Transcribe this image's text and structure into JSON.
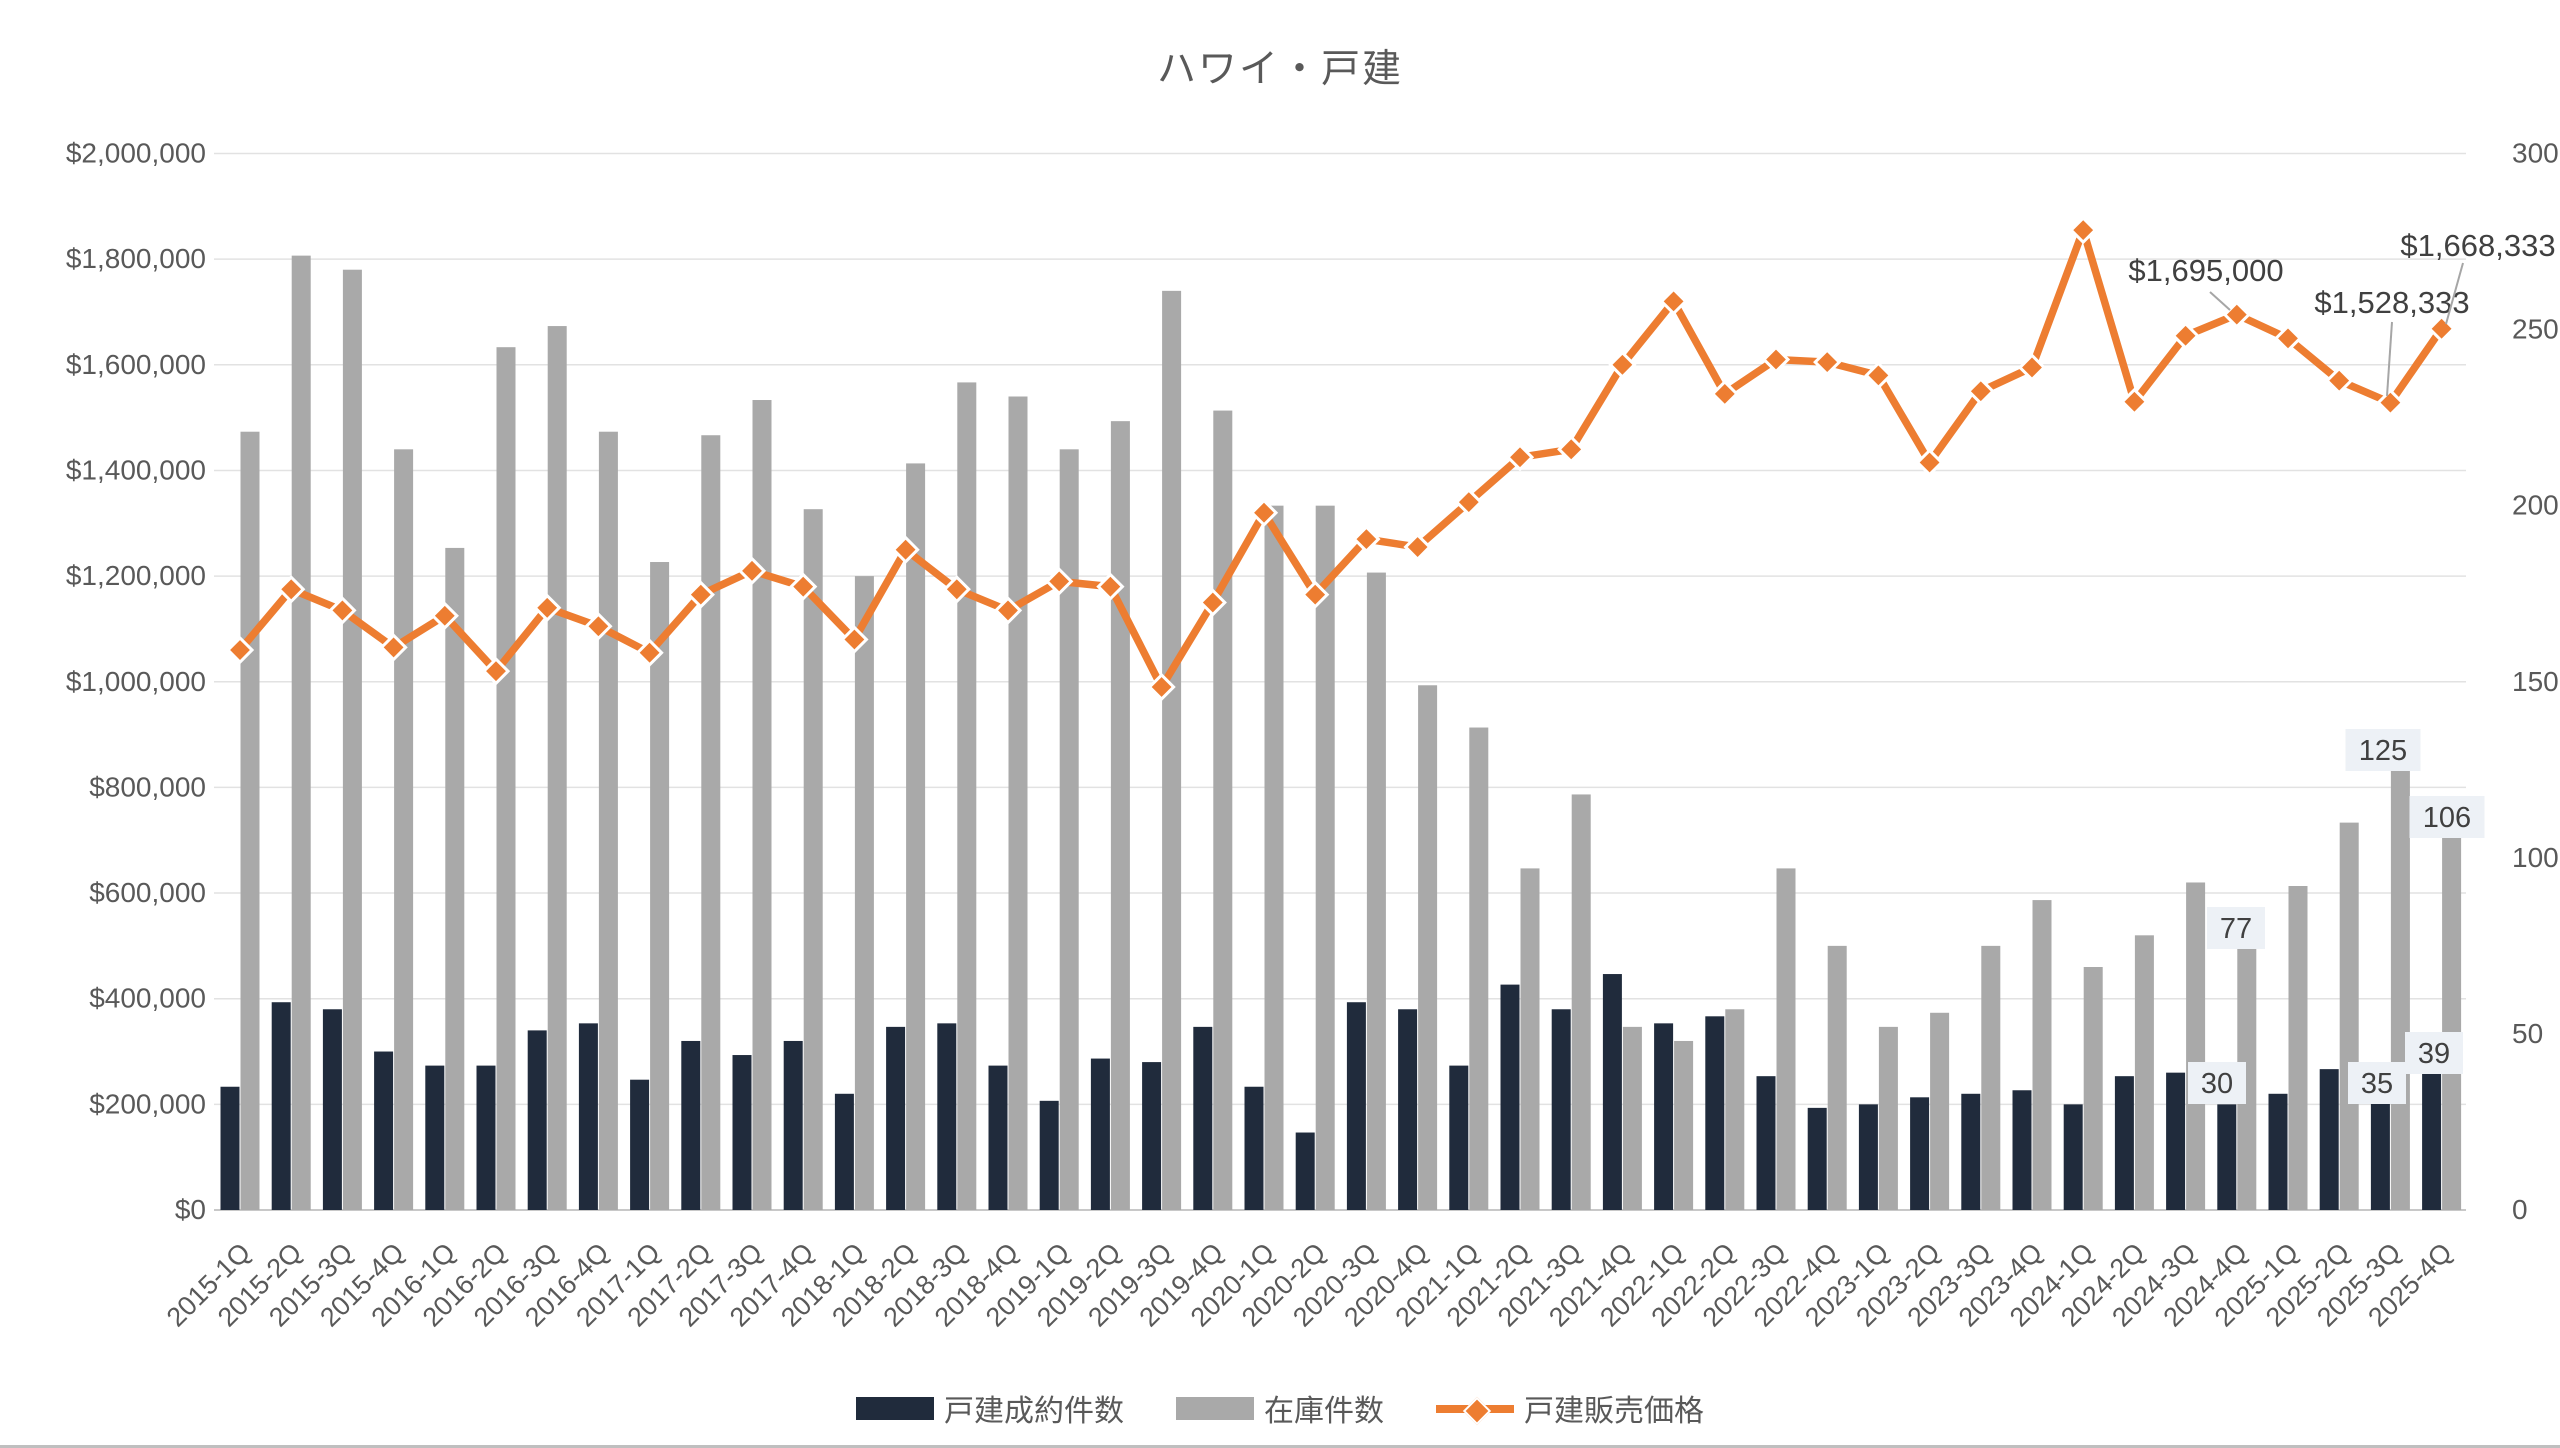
{
  "title": "ハワイ・戸建",
  "chart_data": {
    "type": "combo",
    "title": "ハワイ・戸建",
    "categories": [
      "2015-1Q",
      "2015-2Q",
      "2015-3Q",
      "2015-4Q",
      "2016-1Q",
      "2016-2Q",
      "2016-3Q",
      "2016-4Q",
      "2017-1Q",
      "2017-2Q",
      "2017-3Q",
      "2017-4Q",
      "2018-1Q",
      "2018-2Q",
      "2018-3Q",
      "2018-4Q",
      "2019-1Q",
      "2019-2Q",
      "2019-3Q",
      "2019-4Q",
      "2020-1Q",
      "2020-2Q",
      "2020-3Q",
      "2020-4Q",
      "2021-1Q",
      "2021-2Q",
      "2021-3Q",
      "2021-4Q",
      "2022-1Q",
      "2022-2Q",
      "2022-3Q",
      "2022-4Q",
      "2023-1Q",
      "2023-2Q",
      "2023-3Q",
      "2023-4Q",
      "2024-1Q",
      "2024-2Q",
      "2024-3Q",
      "2024-4Q",
      "2025-1Q",
      "2025-2Q",
      "2025-3Q",
      "2025-4Q"
    ],
    "series": [
      {
        "name": "戸建成約件数",
        "type": "bar",
        "axis": "right",
        "color": "#202B3C",
        "values": [
          35,
          59,
          57,
          45,
          41,
          41,
          51,
          53,
          37,
          48,
          44,
          48,
          33,
          52,
          53,
          41,
          31,
          43,
          42,
          52,
          35,
          22,
          59,
          57,
          41,
          64,
          57,
          67,
          53,
          55,
          38,
          29,
          30,
          32,
          33,
          34,
          30,
          38,
          39,
          30,
          33,
          40,
          35,
          39
        ]
      },
      {
        "name": "在庫件数",
        "type": "bar",
        "axis": "right",
        "color": "#A9A9A9",
        "values": [
          221,
          271,
          267,
          216,
          188,
          245,
          251,
          221,
          184,
          220,
          230,
          199,
          180,
          212,
          235,
          231,
          216,
          224,
          261,
          227,
          200,
          200,
          181,
          149,
          137,
          97,
          118,
          52,
          48,
          57,
          97,
          75,
          52,
          56,
          75,
          88,
          69,
          78,
          93,
          77,
          92,
          110,
          125,
          106
        ]
      },
      {
        "name": "戸建販売価格",
        "type": "line",
        "axis": "left",
        "color": "#ED7D31",
        "values": [
          1060000,
          1175000,
          1135000,
          1065000,
          1125000,
          1020000,
          1140000,
          1105000,
          1055000,
          1165000,
          1210000,
          1180000,
          1080000,
          1250000,
          1175000,
          1135000,
          1190000,
          1180000,
          990000,
          1150000,
          1320000,
          1165000,
          1270000,
          1255000,
          1340000,
          1425000,
          1440000,
          1600000,
          1720000,
          1545000,
          1610000,
          1605000,
          1580000,
          1415000,
          1550000,
          1595000,
          1855000,
          1530000,
          1655000,
          1695000,
          1650000,
          1570000,
          1528333,
          1668333
        ]
      }
    ],
    "left_axis": {
      "min": 0,
      "max": 2000000,
      "step": 200000,
      "tick_labels": [
        "$0",
        "$200,000",
        "$400,000",
        "$600,000",
        "$800,000",
        "$1,000,000",
        "$1,200,000",
        "$1,400,000",
        "$1,600,000",
        "$1,800,000",
        "$2,000,000"
      ]
    },
    "right_axis": {
      "min": 0,
      "max": 300,
      "step": 50,
      "tick_labels": [
        "0",
        "50",
        "100",
        "150",
        "200",
        "250",
        "300"
      ]
    },
    "grid": true,
    "legend_position": "bottom",
    "point_labels": [
      {
        "text": "$1,695,000",
        "kind": "price",
        "index": 39
      },
      {
        "text": "$1,528,333",
        "kind": "price",
        "index": 42
      },
      {
        "text": "$1,668,333",
        "kind": "price",
        "index": 43
      },
      {
        "text": "30",
        "kind": "count",
        "series": 0,
        "index": 39
      },
      {
        "text": "77",
        "kind": "count",
        "series": 1,
        "index": 39
      },
      {
        "text": "35",
        "kind": "count",
        "series": 0,
        "index": 42
      },
      {
        "text": "125",
        "kind": "count",
        "series": 1,
        "index": 42
      },
      {
        "text": "39",
        "kind": "count",
        "series": 0,
        "index": 43
      },
      {
        "text": "106",
        "kind": "count",
        "series": 1,
        "index": 43
      }
    ],
    "colors": {
      "grid": "#E2E2E2",
      "axis_line": "#C8C8C8",
      "tick_text": "#595959",
      "annotation_text": "#404040",
      "annotation_box": "#EDF1F6",
      "leader_line": "#A6A6A6"
    }
  }
}
